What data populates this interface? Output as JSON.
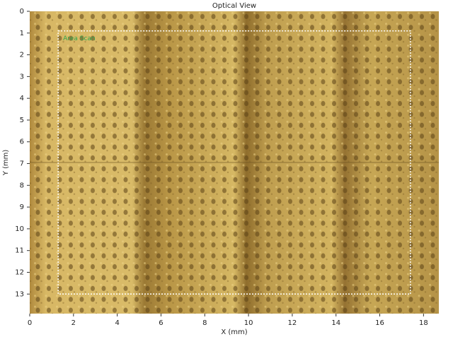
{
  "chart_data": {
    "type": "image",
    "title": "Optical View",
    "xlabel": "X (mm)",
    "ylabel": "Y (mm)",
    "xlim": [
      0,
      18.7
    ],
    "ylim": [
      0,
      13.9
    ],
    "y_inverted": true,
    "xticks": [
      0,
      2,
      4,
      6,
      8,
      10,
      12,
      14,
      16,
      18
    ],
    "yticks": [
      0,
      1,
      2,
      3,
      4,
      5,
      6,
      7,
      8,
      9,
      10,
      11,
      12,
      13
    ],
    "scan_area": {
      "label": "Area Scan",
      "x": [
        1.3,
        17.4
      ],
      "y": [
        0.9,
        13.0
      ],
      "color": "#ffffff",
      "label_color": "#2fa84f"
    }
  }
}
